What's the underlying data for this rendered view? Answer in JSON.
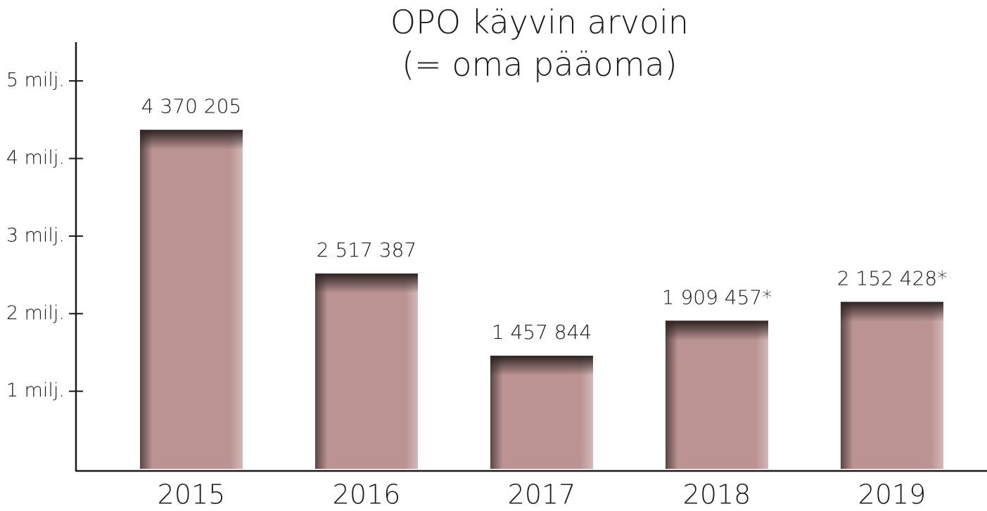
{
  "chart_data": {
    "type": "bar",
    "title": "OPO käyvin arvoin",
    "subtitle": "(= oma pääoma)",
    "categories": [
      "2015",
      "2016",
      "2017",
      "2018",
      "2019"
    ],
    "values": [
      4370205,
      2517387,
      1457844,
      1909457,
      2152428
    ],
    "value_labels": [
      "4 370 205",
      "2 517 387",
      "1 457 844",
      "1 909 457*",
      "2 152 428*"
    ],
    "color": "#bb9393",
    "ylim": [
      0,
      5500000
    ],
    "yticks": [
      {
        "value": 1000000,
        "label": "1 milj."
      },
      {
        "value": 2000000,
        "label": "2 milj."
      },
      {
        "value": 3000000,
        "label": "3 milj."
      },
      {
        "value": 4000000,
        "label": "4 milj."
      },
      {
        "value": 5000000,
        "label": "5 milj."
      }
    ],
    "grid": false
  }
}
